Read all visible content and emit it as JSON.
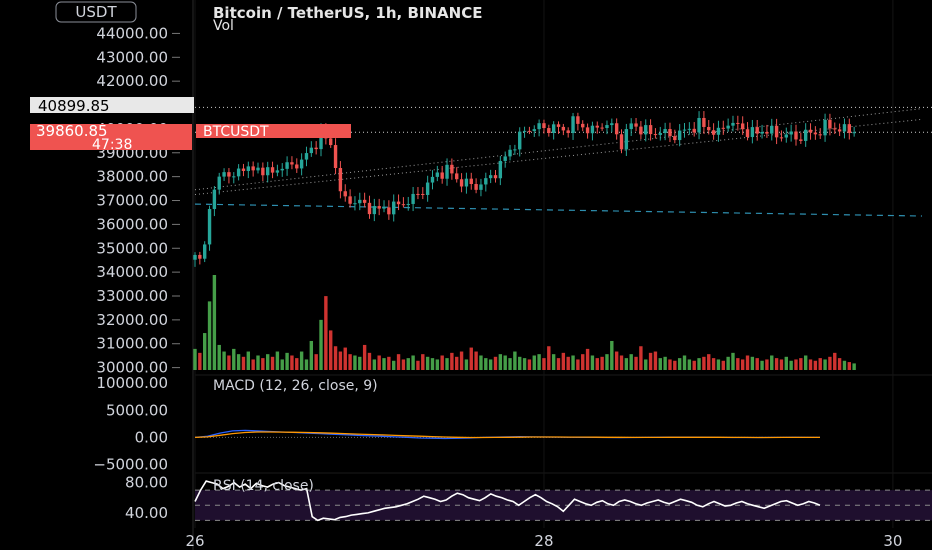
{
  "header": {
    "title": "Bitcoin / TetherUS, 1h, BINANCE",
    "volume_label": "Vol",
    "currency_button": "USDT"
  },
  "price_tags": {
    "high_line": "40899.85",
    "last_price": "39860.85",
    "countdown": "47:38",
    "symbol": "BTCUSDT"
  },
  "colors": {
    "up": "#26a69a",
    "down": "#ef5350",
    "volume_up": "#4caf50",
    "volume_down": "#e53935",
    "macd_line": "#2962ff",
    "macd_signal": "#ff9800",
    "rsi_line": "#ffffff",
    "rsi_band": "#1f0f2e",
    "support_line": "#2e8fb0",
    "background": "#000000"
  },
  "chart_data": [
    {
      "type": "candlestick",
      "title": "Bitcoin / TetherUS, 1h, BINANCE",
      "y_ticks": [
        "44000.00",
        "43000.00",
        "42000.00",
        "41000.00",
        "40000.00",
        "39000.00",
        "38000.00",
        "37000.00",
        "36000.00",
        "35000.00",
        "34000.00",
        "33000.00",
        "32000.00",
        "31000.00",
        "30000.00"
      ],
      "x_ticks": [
        "26",
        "28",
        "30"
      ],
      "ylim": [
        29900,
        45400
      ],
      "x_range": [
        0,
        150
      ],
      "x_tick_positions": [
        0,
        72,
        144
      ],
      "horizontal_lines": [
        {
          "value": 40899.85,
          "style": "dotted"
        },
        {
          "value": 39860.85,
          "style": "dotted"
        }
      ],
      "support_line": {
        "start": [
          0,
          36850
        ],
        "end": [
          150,
          36350
        ]
      },
      "trend_lines": [
        {
          "start": [
            0,
            37250
          ],
          "end": [
            150,
            40400
          ]
        },
        {
          "start": [
            0,
            37450
          ],
          "end": [
            150,
            40850
          ]
        }
      ],
      "anchors": [
        [
          0,
          34600
        ],
        [
          1,
          34500
        ],
        [
          2,
          35100
        ],
        [
          3,
          36900
        ],
        [
          4,
          37300
        ],
        [
          5,
          37900
        ],
        [
          6,
          38300
        ],
        [
          8,
          37900
        ],
        [
          10,
          38500
        ],
        [
          12,
          38200
        ],
        [
          14,
          38350
        ],
        [
          16,
          38100
        ],
        [
          18,
          38500
        ],
        [
          20,
          38400
        ],
        [
          22,
          38700
        ],
        [
          24,
          39100
        ],
        [
          26,
          39800
        ],
        [
          28,
          39300
        ],
        [
          29,
          38600
        ],
        [
          30,
          37200
        ],
        [
          32,
          37000
        ],
        [
          34,
          36900
        ],
        [
          36,
          36700
        ],
        [
          38,
          36600
        ],
        [
          40,
          36700
        ],
        [
          42,
          36800
        ],
        [
          44,
          37000
        ],
        [
          46,
          37200
        ],
        [
          48,
          37700
        ],
        [
          50,
          38100
        ],
        [
          52,
          38300
        ],
        [
          54,
          37900
        ],
        [
          56,
          37700
        ],
        [
          58,
          37600
        ],
        [
          60,
          37800
        ],
        [
          62,
          38200
        ],
        [
          64,
          38800
        ],
        [
          66,
          39400
        ],
        [
          68,
          39900
        ],
        [
          70,
          40100
        ],
        [
          72,
          40000
        ],
        [
          74,
          40100
        ],
        [
          76,
          39900
        ],
        [
          78,
          40300
        ],
        [
          80,
          40100
        ],
        [
          82,
          39900
        ],
        [
          84,
          40200
        ],
        [
          86,
          40100
        ],
        [
          88,
          39400
        ],
        [
          90,
          40200
        ],
        [
          92,
          40000
        ],
        [
          94,
          39800
        ],
        [
          96,
          39900
        ],
        [
          98,
          39700
        ],
        [
          100,
          39800
        ],
        [
          102,
          40000
        ],
        [
          104,
          40200
        ],
        [
          106,
          40000
        ],
        [
          108,
          39800
        ],
        [
          110,
          40300
        ],
        [
          112,
          40100
        ],
        [
          114,
          39900
        ],
        [
          116,
          39800
        ],
        [
          118,
          40000
        ],
        [
          120,
          39700
        ],
        [
          122,
          39800
        ],
        [
          124,
          39600
        ],
        [
          126,
          39800
        ],
        [
          128,
          39800
        ],
        [
          130,
          40100
        ],
        [
          132,
          40050
        ],
        [
          134,
          39950
        ],
        [
          136,
          39860.85
        ]
      ],
      "last_index": 136
    },
    {
      "type": "bar",
      "series": [
        {
          "name": "Vol"
        }
      ],
      "values": [
        80,
        65,
        140,
        260,
        360,
        95,
        70,
        55,
        80,
        60,
        50,
        70,
        40,
        55,
        45,
        60,
        50,
        70,
        40,
        65,
        55,
        45,
        70,
        40,
        110,
        60,
        190,
        280,
        150,
        90,
        70,
        85,
        60,
        55,
        50,
        95,
        65,
        40,
        55,
        45,
        50,
        35,
        60,
        40,
        45,
        55,
        35,
        60,
        50,
        45,
        40,
        55,
        45,
        65,
        50,
        70,
        40,
        85,
        70,
        55,
        45,
        40,
        50,
        60,
        55,
        45,
        70,
        50,
        45,
        40,
        55,
        60,
        45,
        90,
        60,
        45,
        65,
        50,
        55,
        40,
        60,
        80,
        55,
        45,
        50,
        60,
        110,
        70,
        55,
        45,
        60,
        50,
        90,
        40,
        65,
        70,
        45,
        50,
        40,
        35,
        45,
        55,
        40,
        35,
        45,
        50,
        60,
        45,
        40,
        35,
        50,
        65,
        45,
        40,
        55,
        50,
        45,
        35,
        40,
        55,
        45,
        40,
        50,
        35,
        40,
        45,
        55,
        40,
        35,
        45,
        40,
        50,
        65,
        45,
        35,
        30,
        25
      ],
      "note_colors_by_candle": true
    },
    {
      "type": "line",
      "title": "MACD (12, 26, close, 9)",
      "y_ticks": [
        "10000.00",
        "5000.00",
        "0.00",
        "−5000.00"
      ],
      "ylim": [
        -6000,
        11500
      ],
      "series": [
        {
          "values": [
            0,
            200,
            800,
            1200,
            1300,
            1200,
            1100,
            1000,
            900,
            800,
            700,
            600,
            500,
            400,
            300,
            200,
            100,
            0,
            -100,
            -150,
            -200,
            -150,
            -100,
            0,
            50,
            100,
            150,
            100,
            80,
            60,
            40,
            20,
            0,
            -20,
            -40,
            -20,
            0,
            20,
            40,
            60,
            40,
            20,
            0,
            -10,
            -20,
            -10,
            0,
            10,
            20,
            10,
            0
          ]
        },
        {
          "values": [
            0,
            100,
            400,
            700,
            900,
            1000,
            1000,
            980,
            950,
            900,
            850,
            780,
            700,
            620,
            540,
            460,
            380,
            300,
            220,
            150,
            80,
            30,
            -10,
            -20,
            0,
            20,
            50,
            70,
            80,
            75,
            65,
            55,
            45,
            30,
            15,
            5,
            0,
            5,
            15,
            25,
            30,
            25,
            15,
            5,
            0,
            -5,
            -5,
            0,
            5,
            5,
            0
          ]
        }
      ]
    },
    {
      "type": "line",
      "title": "RSI (14, close)",
      "y_ticks": [
        "80.00",
        "40.00"
      ],
      "ylim": [
        20,
        90
      ],
      "bands": [
        70,
        50,
        30
      ],
      "series": [
        {
          "values": [
            55,
            70,
            82,
            80,
            78,
            72,
            75,
            80,
            74,
            78,
            72,
            79,
            76,
            74,
            78,
            80,
            76,
            74,
            72,
            70,
            72,
            35,
            30,
            33,
            32,
            31,
            34,
            35,
            37,
            38,
            39,
            40,
            42,
            44,
            46,
            47,
            48,
            50,
            52,
            55,
            58,
            62,
            60,
            58,
            55,
            57,
            62,
            66,
            64,
            60,
            58,
            56,
            60,
            65,
            62,
            60,
            57,
            55,
            50,
            55,
            60,
            64,
            60,
            55,
            52,
            48,
            42,
            50,
            58,
            55,
            52,
            50,
            54,
            56,
            52,
            50,
            55,
            57,
            55,
            52,
            50,
            53,
            55,
            57,
            54,
            52,
            55,
            58,
            56,
            54,
            50,
            48,
            52,
            55,
            52,
            49,
            50,
            53,
            55,
            52,
            50,
            48,
            46,
            49,
            52,
            55,
            56,
            53,
            50,
            52,
            55,
            53,
            50
          ]
        }
      ]
    }
  ]
}
